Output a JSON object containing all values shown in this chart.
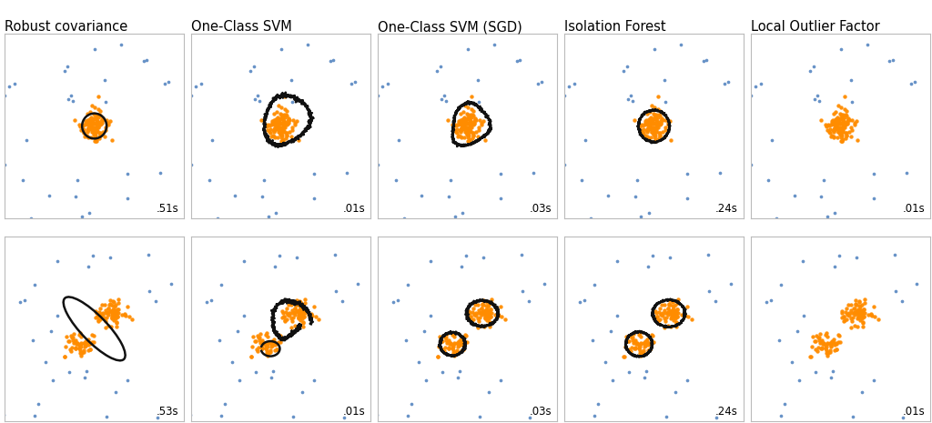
{
  "titles": [
    "Robust covariance",
    "One-Class SVM",
    "One-Class SVM (SGD)",
    "Isolation Forest",
    "Local Outlier Factor"
  ],
  "times_row1": [
    ".51s",
    ".01s",
    ".03s",
    ".24s",
    ".01s"
  ],
  "times_row2": [
    ".53s",
    ".01s",
    ".03s",
    ".24s",
    ".01s"
  ],
  "background_color": "#ffffff",
  "inlier_color": "#ff8c00",
  "outlier_color": "#4c7fbe",
  "boundary_color": "#111111",
  "title_fontsize": 10.5,
  "time_fontsize": 8.5
}
